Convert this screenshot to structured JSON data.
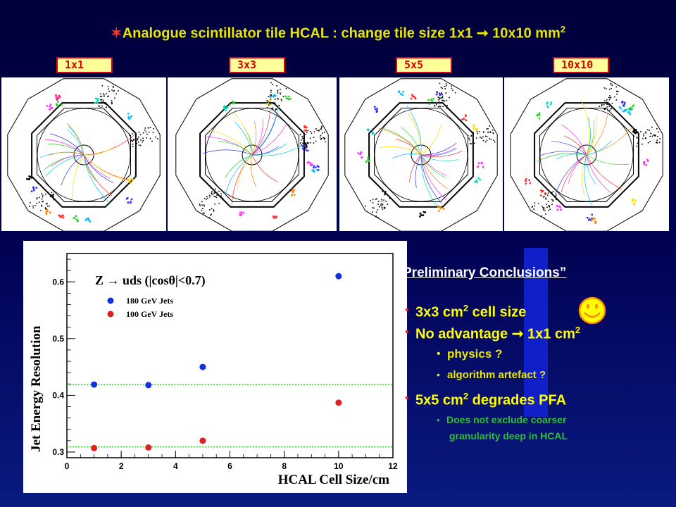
{
  "title": {
    "text": "Analogue scintillator tile HCAL : change tile size  1x1 ➞ 10x10 mm",
    "sup": "2"
  },
  "panels": [
    {
      "label": "1x1"
    },
    {
      "label": "3x3"
    },
    {
      "label": "5x5"
    },
    {
      "label": "10x10"
    }
  ],
  "chart_data": {
    "type": "scatter",
    "title": "Z → uds (|cosθ|<0.7)",
    "xlabel": "HCAL Cell Size/cm",
    "ylabel": "Jet Energy Resolution",
    "xlim": [
      0,
      12
    ],
    "ylim": [
      0.29,
      0.65
    ],
    "xticks": [
      "0",
      "2",
      "4",
      "6",
      "8",
      "10",
      "12"
    ],
    "yticks": [
      "0.3",
      "0.4",
      "0.5",
      "0.6"
    ],
    "series": [
      {
        "name": "180 GeV Jets",
        "color": "#1030e0",
        "points": [
          [
            1,
            0.419
          ],
          [
            3,
            0.418
          ],
          [
            5,
            0.45
          ],
          [
            10,
            0.61
          ]
        ],
        "reference_line": 0.419
      },
      {
        "name": "100 GeV Jets",
        "color": "#e02020",
        "points": [
          [
            1,
            0.307
          ],
          [
            3,
            0.308
          ],
          [
            5,
            0.32
          ],
          [
            10,
            0.387
          ]
        ],
        "reference_line": 0.309
      }
    ],
    "grid": false,
    "legend": "top-left"
  },
  "conclusions": {
    "title": "Preliminary Conclusions”",
    "items": [
      {
        "text": "3x3 cm",
        "sup": "2",
        "after": " cell size"
      },
      {
        "text": "No advantage ➞ 1x1 cm",
        "sup": "2",
        "after": ""
      },
      {
        "text": "5x5 cm",
        "sup": "2",
        "after": " degrades PFA"
      }
    ],
    "subitems": [
      "physics ?",
      "algorithm artefact ?"
    ],
    "note_line1": "Does not exclude coarser",
    "note_line2": "granularity deep in HCAL"
  },
  "colors": {
    "title": "#e6e600",
    "conclusion_items": "#ffff00",
    "sub_items": "#e8e800",
    "note": "#30c030",
    "bullet": "#ff2020"
  }
}
